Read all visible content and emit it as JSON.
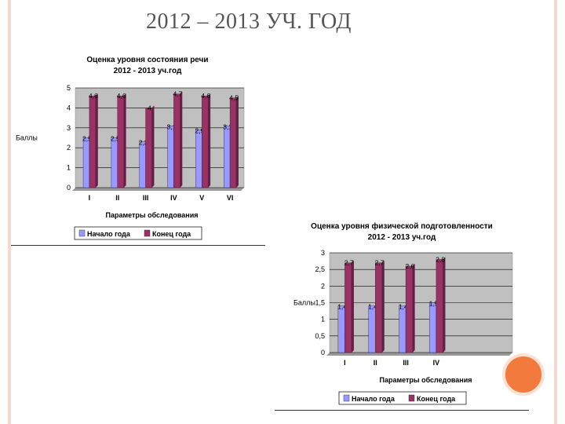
{
  "page": {
    "title": "2012 – 2013 УЧ. ГОД"
  },
  "colors": {
    "start": "#9999ff",
    "end": "#993366",
    "plot_bg": "#c0c0c0",
    "accent": "#f37a3d"
  },
  "chart_data": [
    {
      "type": "bar",
      "title": "Оценка уровня состояния речи",
      "subtitle": "2012 - 2013 уч.год",
      "xlabel": "Параметры обследования",
      "ylabel": "Баллы",
      "categories": [
        "I",
        "II",
        "III",
        "IV",
        "V",
        "VI"
      ],
      "ylim": [
        0,
        5
      ],
      "yticks": [
        "0",
        "1",
        "2",
        "3",
        "4",
        "5"
      ],
      "grid": true,
      "legend": "bottom",
      "series": [
        {
          "name": "Начало года",
          "values": [
            2.5,
            2.5,
            2.3,
            3.1,
            2.9,
            3.1
          ],
          "labels": [
            "2,5",
            "2,5",
            "2,3",
            "3,1",
            "2,9",
            "3,1"
          ]
        },
        {
          "name": "Конец года",
          "values": [
            4.6,
            4.6,
            4.0,
            4.7,
            4.6,
            4.5
          ],
          "labels": [
            "4,6",
            "4,6",
            "4",
            "4,7",
            "4,6",
            "4,5"
          ]
        }
      ]
    },
    {
      "type": "bar",
      "title": "Оценка уровня физической подготовленности",
      "subtitle": "2012 - 2013 уч.год",
      "xlabel": "Параметры обследования",
      "ylabel": "Баллы",
      "categories": [
        "I",
        "II",
        "III",
        "IV",
        "",
        ""
      ],
      "ylim": [
        0,
        3
      ],
      "yticks": [
        "0",
        "0,5",
        "1",
        "1,5",
        "2",
        "2,5",
        "3"
      ],
      "grid": true,
      "legend": "bottom",
      "series": [
        {
          "name": "Начало года",
          "values": [
            1.4,
            1.4,
            1.4,
            1.5,
            null,
            null
          ],
          "labels": [
            "1,4",
            "1,4",
            "1,4",
            "1,5",
            "",
            ""
          ]
        },
        {
          "name": "Конец года",
          "values": [
            2.7,
            2.7,
            2.6,
            2.8,
            null,
            null
          ],
          "labels": [
            "2,7",
            "2,7",
            "2,6",
            "2,8",
            "",
            ""
          ]
        }
      ]
    }
  ]
}
